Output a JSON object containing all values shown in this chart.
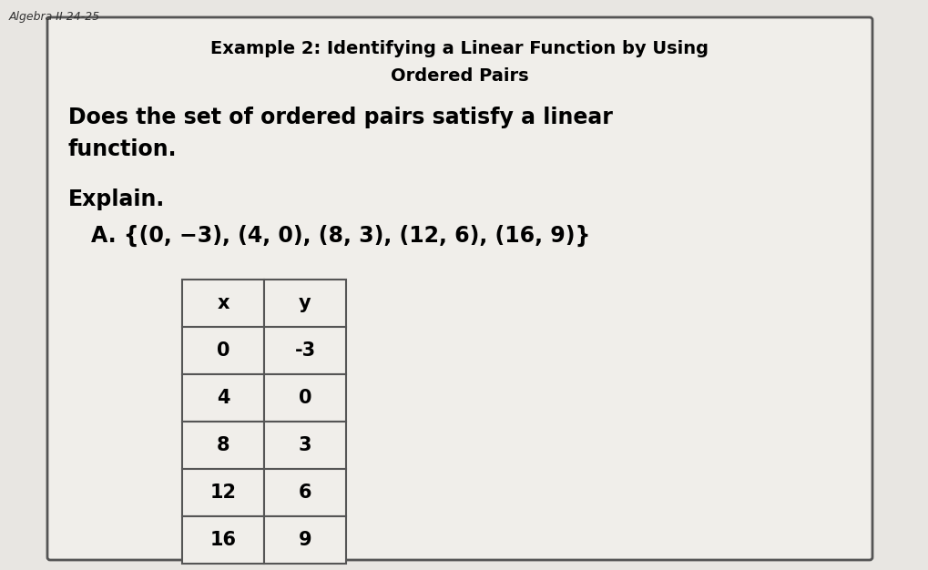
{
  "page_label": "Algebra II 24-25",
  "box_title_line1": "Example 2: Identifying a Linear Function by Using",
  "box_title_line2": "Ordered Pairs",
  "question_line1": "Does the set of ordered pairs satisfy a linear",
  "question_line2": "function.",
  "explain_label": "Explain.",
  "problem_label": "A. {(0, −3), (4, 0), (8, 3), (12, 6), (16, 9)}",
  "table_headers": [
    "x",
    "y"
  ],
  "table_data": [
    [
      "0",
      "-3"
    ],
    [
      "4",
      "0"
    ],
    [
      "8",
      "3"
    ],
    [
      "12",
      "6"
    ],
    [
      "16",
      "9"
    ]
  ],
  "bg_color": "#e0ddd8",
  "page_area_color": "#e8e6e2",
  "white_box_color": "#f0eeea",
  "border_color": "#555555",
  "text_color": "#000000",
  "page_label_color": "#333333",
  "figsize": [
    10.19,
    6.26
  ],
  "dpi": 100
}
